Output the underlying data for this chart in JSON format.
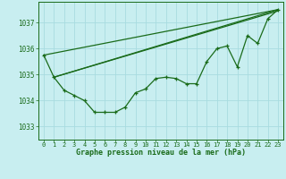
{
  "title": "Graphe pression niveau de la mer (hPa)",
  "background_color": "#c8eef0",
  "grid_color": "#a8dce0",
  "line_color": "#1a6b1a",
  "text_color": "#1a6b1a",
  "ylim": [
    1032.5,
    1037.8
  ],
  "xlim": [
    -0.5,
    23.5
  ],
  "yticks": [
    1033,
    1034,
    1035,
    1036,
    1037
  ],
  "xticks": [
    0,
    1,
    2,
    3,
    4,
    5,
    6,
    7,
    8,
    9,
    10,
    11,
    12,
    13,
    14,
    15,
    16,
    17,
    18,
    19,
    20,
    21,
    22,
    23
  ],
  "main_x": [
    0,
    1,
    2,
    3,
    4,
    5,
    6,
    7,
    8,
    9,
    10,
    11,
    12,
    13,
    14,
    15,
    16,
    17,
    18,
    19,
    20,
    21,
    22,
    23
  ],
  "main_y": [
    1035.75,
    1034.9,
    1034.4,
    1034.2,
    1034.0,
    1033.55,
    1033.55,
    1033.55,
    1033.75,
    1034.3,
    1034.45,
    1034.85,
    1034.9,
    1034.85,
    1034.65,
    1034.65,
    1035.5,
    1036.0,
    1036.1,
    1035.3,
    1036.5,
    1036.2,
    1037.15,
    1037.5
  ],
  "trend1_x": [
    0,
    23
  ],
  "trend1_y": [
    1035.75,
    1037.5
  ],
  "trend2_x": [
    1,
    23
  ],
  "trend2_y": [
    1034.9,
    1037.5
  ],
  "trend3_x": [
    1,
    23
  ],
  "trend3_y": [
    1034.9,
    1037.45
  ]
}
